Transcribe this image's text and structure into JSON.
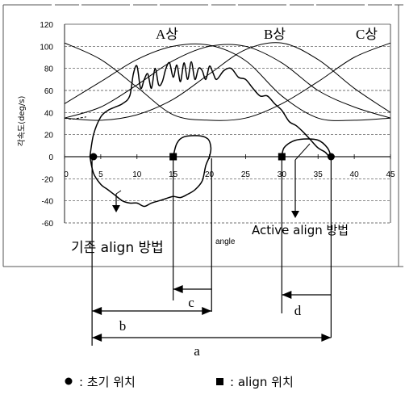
{
  "chart_data": {
    "type": "line",
    "ylabel": "각속도(deg/s)",
    "xlabel": "angle",
    "xlim": [
      0,
      45
    ],
    "ylim": [
      -60,
      120
    ],
    "x_ticks": [
      "0",
      "5",
      "10",
      "15",
      "20",
      "25",
      "30",
      "35",
      "40",
      "45"
    ],
    "y_ticks": [
      "120",
      "100",
      "80",
      "60",
      "40",
      "20",
      "0",
      "-20",
      "-40",
      "-60"
    ],
    "grid": "horizontal",
    "phase_labels": [
      "A상",
      "B상",
      "C상"
    ],
    "series": [
      {
        "style": "thin-smooth",
        "points": [
          [
            0,
            48
          ],
          [
            5,
            68
          ],
          [
            10,
            88
          ],
          [
            15,
            100
          ],
          [
            20,
            101
          ],
          [
            25,
            87
          ],
          [
            30,
            55
          ],
          [
            35,
            35
          ],
          [
            40,
            33
          ],
          [
            45,
            35
          ]
        ]
      },
      {
        "style": "thin-smooth",
        "points": [
          [
            0,
            103
          ],
          [
            5,
            88
          ],
          [
            10,
            63
          ],
          [
            15,
            38
          ],
          [
            20,
            33
          ],
          [
            25,
            35
          ],
          [
            30,
            48
          ],
          [
            35,
            68
          ],
          [
            40,
            90
          ],
          [
            45,
            103
          ]
        ]
      },
      {
        "style": "thin-smooth",
        "points": [
          [
            0,
            35
          ],
          [
            5,
            33
          ],
          [
            10,
            38
          ],
          [
            15,
            52
          ],
          [
            20,
            75
          ],
          [
            25,
            97
          ],
          [
            30,
            103
          ],
          [
            35,
            88
          ],
          [
            40,
            62
          ],
          [
            45,
            40
          ]
        ]
      },
      {
        "style": "thin-smooth",
        "points": [
          [
            0,
            35
          ],
          [
            5,
            45
          ],
          [
            10,
            65
          ],
          [
            15,
            87
          ],
          [
            20,
            100
          ],
          [
            25,
            100
          ],
          [
            30,
            85
          ],
          [
            35,
            60
          ],
          [
            40,
            45
          ],
          [
            45,
            35
          ]
        ]
      },
      {
        "style": "dashed",
        "points": [
          [
            0,
            35
          ],
          [
            1,
            34
          ],
          [
            2,
            35
          ],
          [
            3,
            36
          ]
        ]
      },
      {
        "style": "bold-measured",
        "points": [
          [
            3.5,
            0
          ],
          [
            4,
            20
          ],
          [
            5,
            36
          ],
          [
            6,
            42
          ],
          [
            7,
            45
          ],
          [
            8,
            48
          ],
          [
            9,
            55
          ],
          [
            9.5,
            75
          ],
          [
            10,
            82
          ],
          [
            10.5,
            62
          ],
          [
            11,
            70
          ],
          [
            11.5,
            75
          ],
          [
            12,
            62
          ],
          [
            12.5,
            80
          ],
          [
            13,
            65
          ],
          [
            13.5,
            68
          ],
          [
            14,
            80
          ],
          [
            14.5,
            85
          ],
          [
            15,
            72
          ],
          [
            15.5,
            83
          ],
          [
            16,
            68
          ],
          [
            16.5,
            85
          ],
          [
            17,
            70
          ],
          [
            17.5,
            86
          ],
          [
            18,
            70
          ],
          [
            18.5,
            80
          ],
          [
            19,
            78
          ],
          [
            19.5,
            70
          ],
          [
            20,
            82
          ],
          [
            20.5,
            76
          ],
          [
            21,
            70
          ],
          [
            22,
            78
          ],
          [
            23,
            80
          ],
          [
            24,
            72
          ],
          [
            25,
            70
          ],
          [
            26,
            62
          ],
          [
            27,
            55
          ],
          [
            28,
            55
          ],
          [
            29,
            48
          ],
          [
            30,
            42
          ],
          [
            31,
            32
          ],
          [
            32,
            28
          ],
          [
            33,
            22
          ],
          [
            34,
            15
          ],
          [
            35,
            8
          ],
          [
            36,
            4
          ],
          [
            36.5,
            0
          ]
        ]
      },
      {
        "style": "bold-measured",
        "points": [
          [
            3.5,
            0
          ],
          [
            4,
            -15
          ],
          [
            5,
            -25
          ],
          [
            6,
            -30
          ],
          [
            7,
            -35
          ],
          [
            8,
            -40
          ],
          [
            9,
            -42
          ],
          [
            10,
            -42
          ],
          [
            11,
            -45
          ],
          [
            12,
            -42
          ],
          [
            13,
            -40
          ],
          [
            14,
            -38
          ],
          [
            15,
            -36
          ],
          [
            16,
            -37
          ],
          [
            17,
            -34
          ],
          [
            18,
            -30
          ],
          [
            19,
            -22
          ],
          [
            19.5,
            -8
          ],
          [
            20,
            0
          ],
          [
            20.2,
            8
          ],
          [
            19.8,
            16
          ],
          [
            18.5,
            19
          ],
          [
            16.5,
            18
          ],
          [
            15.5,
            12
          ],
          [
            15,
            0
          ]
        ]
      },
      {
        "style": "bold-measured",
        "points": [
          [
            30,
            0
          ],
          [
            30.3,
            8
          ],
          [
            31.5,
            14
          ],
          [
            33,
            16
          ],
          [
            35,
            15
          ],
          [
            36.3,
            8
          ],
          [
            36.8,
            0
          ]
        ]
      }
    ],
    "markers": {
      "initial_position": [
        [
          4,
          0
        ],
        [
          36.8,
          0
        ]
      ],
      "align_position": [
        [
          15,
          0
        ],
        [
          30,
          0
        ]
      ]
    },
    "annotations": {
      "conventional": "기존 align 방법",
      "active": "Active align 방법"
    },
    "dimensions": [
      "a",
      "b",
      "c",
      "d"
    ],
    "legend": [
      {
        "symbol": "●",
        "label": ": 초기 위치"
      },
      {
        "symbol": "■",
        "label": ": align 위치"
      }
    ]
  }
}
